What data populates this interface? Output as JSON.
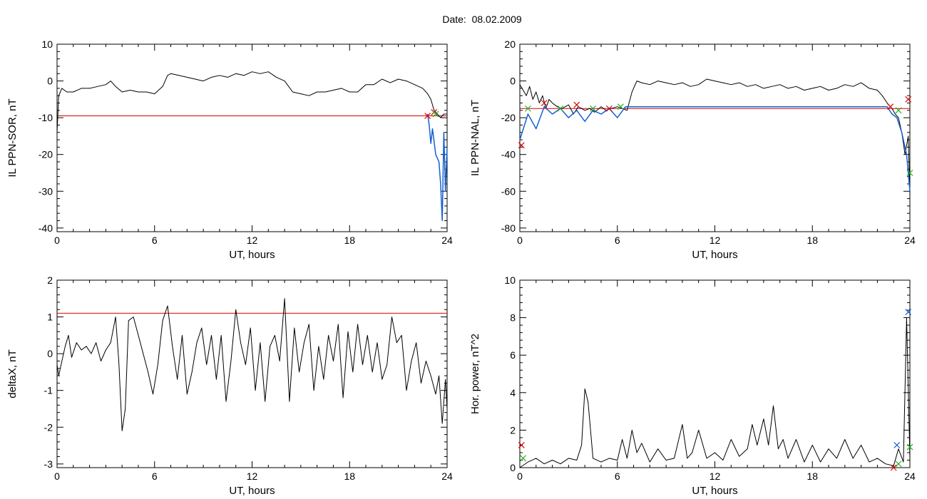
{
  "page": {
    "title": "Date:  08.02.2009"
  },
  "colors": {
    "trace": "#000000",
    "threshold": "#dd0000",
    "highlight": "#1560d0",
    "marker_red": "#dd0000",
    "marker_green": "#20b020",
    "marker_blue": "#1560d0"
  },
  "chart_data": [
    {
      "type": "line",
      "xlabel": "UT, hours",
      "ylabel": "IL PPN-SOR, nT",
      "xlim": [
        0,
        24
      ],
      "ylim": [
        -41,
        10
      ],
      "xticks": [
        0,
        6,
        12,
        18,
        24
      ],
      "yticks": [
        10,
        0,
        -10,
        -20,
        -30,
        -40
      ],
      "threshold": -9.5,
      "series": [
        {
          "x": [
            0,
            0.1,
            0.3,
            0.6,
            1,
            1.5,
            2,
            2.5,
            3,
            3.3,
            3.6,
            4,
            4.5,
            5,
            5.5,
            6,
            6.5,
            6.8,
            7,
            7.5,
            8,
            8.5,
            9,
            9.5,
            10,
            10.5,
            11,
            11.5,
            12,
            12.5,
            13,
            13.5,
            14,
            14.5,
            15,
            15.5,
            16,
            16.5,
            17,
            17.5,
            18,
            18.5,
            19,
            19.5,
            20,
            20.5,
            21,
            21.5,
            22,
            22.5,
            22.8,
            23,
            23.2,
            23.4,
            23.6,
            23.8,
            24
          ],
          "y": [
            -14,
            -4,
            -2,
            -3,
            -3,
            -2,
            -2,
            -1.5,
            -1,
            0,
            -1.5,
            -3,
            -2.5,
            -3,
            -3,
            -3.5,
            -1.5,
            1.5,
            2,
            1.5,
            1,
            0.5,
            0,
            1,
            1.5,
            1,
            2,
            1.5,
            2.5,
            2,
            2.5,
            1,
            0,
            -3,
            -3.5,
            -4,
            -3,
            -3,
            -2.5,
            -2,
            -3,
            -3,
            -1,
            -1,
            0.5,
            -0.5,
            0.5,
            0,
            -1,
            -2,
            -3.5,
            -5,
            -8,
            -9,
            -10,
            -9,
            -9
          ]
        },
        {
          "x": [
            22.8,
            22.9,
            23,
            23.1,
            23.3,
            23.5,
            23.6,
            23.7,
            23.8,
            23.9,
            24
          ],
          "y": [
            -9,
            -12,
            -17,
            -13,
            -20,
            -22,
            -28,
            -38,
            -14,
            -30,
            -18
          ]
        }
      ],
      "markers": [
        {
          "x": 22.8,
          "y": -9.5,
          "color": "red"
        },
        {
          "x": 23.2,
          "y": -8.5,
          "color": "red"
        },
        {
          "x": 23.3,
          "y": -9,
          "color": "green"
        }
      ]
    },
    {
      "type": "line",
      "xlabel": "UT, hours",
      "ylabel": "IL PPN-NAL, nT",
      "xlim": [
        0,
        24
      ],
      "ylim": [
        -82,
        20
      ],
      "xticks": [
        0,
        6,
        12,
        18,
        24
      ],
      "yticks": [
        20,
        0,
        -20,
        -40,
        -60,
        -80
      ],
      "threshold": -15,
      "series": [
        {
          "x": [
            0,
            0.2,
            0.4,
            0.6,
            0.8,
            1,
            1.2,
            1.4,
            1.6,
            1.8,
            2,
            2.3,
            2.6,
            3,
            3.3,
            3.6,
            4,
            4.3,
            4.6,
            5,
            5.3,
            5.6,
            6,
            6.3,
            6.6,
            6.9,
            7.2,
            7.5,
            8,
            8.5,
            9,
            9.5,
            10,
            10.5,
            11,
            11.5,
            12,
            12.5,
            13,
            13.5,
            14,
            14.5,
            15,
            15.5,
            16,
            16.5,
            17,
            17.5,
            18,
            18.5,
            19,
            19.5,
            20,
            20.5,
            21,
            21.5,
            22,
            22.3,
            22.6,
            22.9,
            23.1,
            23.3,
            23.5,
            23.7,
            23.9,
            24
          ],
          "y": [
            -2,
            -5,
            -8,
            -3,
            -10,
            -6,
            -12,
            -8,
            -15,
            -10,
            -12,
            -14,
            -15,
            -13,
            -18,
            -14,
            -16,
            -15,
            -17,
            -14,
            -16,
            -15,
            -14,
            -15,
            -16,
            -6,
            0,
            -1,
            -2,
            0,
            -1,
            -2,
            -1,
            -3,
            -2,
            1,
            0,
            -1,
            -2,
            -1,
            -3,
            -2,
            -4,
            -3,
            -2,
            -4,
            -3,
            -5,
            -4,
            -3,
            -5,
            -4,
            -2,
            -3,
            -1,
            -4,
            -5,
            -8,
            -12,
            -15,
            -18,
            -20,
            -28,
            -40,
            -30,
            -62
          ]
        },
        {
          "x": [
            0,
            0.5,
            1,
            1.5,
            2,
            2.5,
            3,
            3.5,
            4,
            4.5,
            5,
            5.5,
            6,
            6.5,
            22.6,
            22.9,
            23.2,
            23.5,
            23.8,
            24
          ],
          "y": [
            -32,
            -18,
            -26,
            -14,
            -18,
            -15,
            -20,
            -16,
            -22,
            -16,
            -18,
            -15,
            -20,
            -14,
            -14,
            -18,
            -20,
            -28,
            -40,
            -60
          ]
        }
      ],
      "markers": [
        {
          "x": 0.1,
          "y": -35,
          "color": "red"
        },
        {
          "x": 0.5,
          "y": -15,
          "color": "green"
        },
        {
          "x": 1.5,
          "y": -12,
          "color": "red"
        },
        {
          "x": 2.5,
          "y": -15,
          "color": "green"
        },
        {
          "x": 3.5,
          "y": -13,
          "color": "red"
        },
        {
          "x": 4.5,
          "y": -15,
          "color": "green"
        },
        {
          "x": 5.5,
          "y": -15,
          "color": "red"
        },
        {
          "x": 6.2,
          "y": -14,
          "color": "green"
        },
        {
          "x": 22.8,
          "y": -14,
          "color": "red"
        },
        {
          "x": 23.3,
          "y": -16,
          "color": "green"
        },
        {
          "x": 23.9,
          "y": -10,
          "color": "red"
        },
        {
          "x": 24,
          "y": -50,
          "color": "green"
        }
      ]
    },
    {
      "type": "line",
      "xlabel": "UT, hours",
      "ylabel": "deltaX, nT",
      "xlim": [
        0,
        24
      ],
      "ylim": [
        -3.1,
        2
      ],
      "xticks": [
        0,
        6,
        12,
        18,
        24
      ],
      "yticks": [
        2,
        1,
        0,
        -1,
        -2,
        -3
      ],
      "threshold": 1.1,
      "series": [
        {
          "x": [
            0,
            0.1,
            0.3,
            0.5,
            0.7,
            0.9,
            1.2,
            1.5,
            1.8,
            2.1,
            2.4,
            2.7,
            3,
            3.3,
            3.6,
            3.8,
            4,
            4.2,
            4.4,
            4.7,
            5,
            5.3,
            5.6,
            5.9,
            6.2,
            6.5,
            6.8,
            7.1,
            7.4,
            7.7,
            8,
            8.3,
            8.6,
            8.9,
            9.2,
            9.5,
            9.8,
            10.1,
            10.4,
            10.7,
            11,
            11.3,
            11.6,
            11.9,
            12.2,
            12.5,
            12.8,
            13.1,
            13.4,
            13.7,
            14,
            14.3,
            14.6,
            14.9,
            15.2,
            15.5,
            15.8,
            16.1,
            16.4,
            16.7,
            17,
            17.3,
            17.6,
            17.9,
            18.2,
            18.5,
            18.8,
            19.1,
            19.4,
            19.7,
            20,
            20.3,
            20.6,
            20.9,
            21.2,
            21.5,
            21.8,
            22.1,
            22.4,
            22.7,
            23,
            23.3,
            23.5,
            23.7,
            23.9,
            24
          ],
          "y": [
            -0.3,
            -0.6,
            -0.2,
            0.2,
            0.5,
            -0.1,
            0.3,
            0.1,
            0.2,
            0,
            0.3,
            -0.2,
            0.1,
            0.3,
            1,
            -0.2,
            -2.1,
            -1.5,
            0.9,
            1,
            0.5,
            0,
            -0.5,
            -1.1,
            -0.3,
            0.9,
            1.3,
            0.2,
            -0.7,
            0.5,
            -1.1,
            -0.5,
            0.3,
            0.7,
            -0.3,
            0.5,
            -0.7,
            0.5,
            -1.3,
            -0.2,
            1.2,
            0.3,
            -0.3,
            0.7,
            -1,
            0.3,
            -1.3,
            0.2,
            0.5,
            -0.2,
            1.5,
            -1.3,
            0.7,
            -0.5,
            0.3,
            0.8,
            -1,
            0.2,
            -0.7,
            0.5,
            -0.2,
            0.8,
            -1.2,
            0.6,
            -0.5,
            0.8,
            -0.3,
            0.5,
            -0.5,
            0.3,
            -0.7,
            -0.3,
            1,
            0.3,
            0.5,
            -1,
            -0.2,
            0.3,
            -0.8,
            -0.2,
            -0.6,
            -1.1,
            -0.6,
            -1.9,
            -0.7,
            -1.5
          ]
        }
      ],
      "markers": []
    },
    {
      "type": "line",
      "xlabel": "UT, hours",
      "ylabel": "Hor. power, nT^2",
      "xlim": [
        0,
        24
      ],
      "ylim": [
        0,
        10
      ],
      "xticks": [
        0,
        6,
        12,
        18,
        24
      ],
      "yticks": [
        10,
        8,
        6,
        4,
        2,
        0
      ],
      "threshold": null,
      "series": [
        {
          "x": [
            0,
            0.5,
            1,
            1.5,
            2,
            2.5,
            3,
            3.5,
            3.8,
            4,
            4.2,
            4.5,
            5,
            5.5,
            6,
            6.3,
            6.6,
            6.9,
            7.2,
            7.5,
            8,
            8.5,
            9,
            9.5,
            10,
            10.3,
            10.6,
            11,
            11.5,
            12,
            12.5,
            13,
            13.5,
            14,
            14.3,
            14.6,
            15,
            15.3,
            15.6,
            15.9,
            16.2,
            16.5,
            17,
            17.5,
            18,
            18.5,
            19,
            19.5,
            20,
            20.5,
            21,
            21.5,
            22,
            22.5,
            23,
            23.3,
            23.6,
            23.8,
            24
          ],
          "y": [
            0,
            0.3,
            0.5,
            0.2,
            0.4,
            0.2,
            0.5,
            0.4,
            1.2,
            4.2,
            3.5,
            0.5,
            0.3,
            0.5,
            0.4,
            1.5,
            0.5,
            2,
            0.8,
            1.3,
            0.3,
            1,
            0.4,
            0.5,
            2.3,
            0.5,
            0.8,
            2,
            0.5,
            0.8,
            0.4,
            1.5,
            0.6,
            1,
            2.3,
            1.2,
            2.6,
            1.2,
            3.3,
            1,
            1.5,
            0.5,
            1.5,
            0.3,
            1.2,
            0.3,
            1,
            0.5,
            1.5,
            0.5,
            1.2,
            0.3,
            0.5,
            0.2,
            0.1,
            1,
            0.3,
            8,
            0.5
          ]
        }
      ],
      "markers": [
        {
          "x": 0.1,
          "y": 1.2,
          "color": "red"
        },
        {
          "x": 0.2,
          "y": 0.5,
          "color": "green"
        },
        {
          "x": 23,
          "y": 0,
          "color": "red"
        },
        {
          "x": 23.2,
          "y": 1.2,
          "color": "blue"
        },
        {
          "x": 23.3,
          "y": 0.2,
          "color": "green"
        },
        {
          "x": 23.9,
          "y": 8.3,
          "color": "blue"
        },
        {
          "x": 24,
          "y": 1.1,
          "color": "green"
        }
      ]
    }
  ]
}
